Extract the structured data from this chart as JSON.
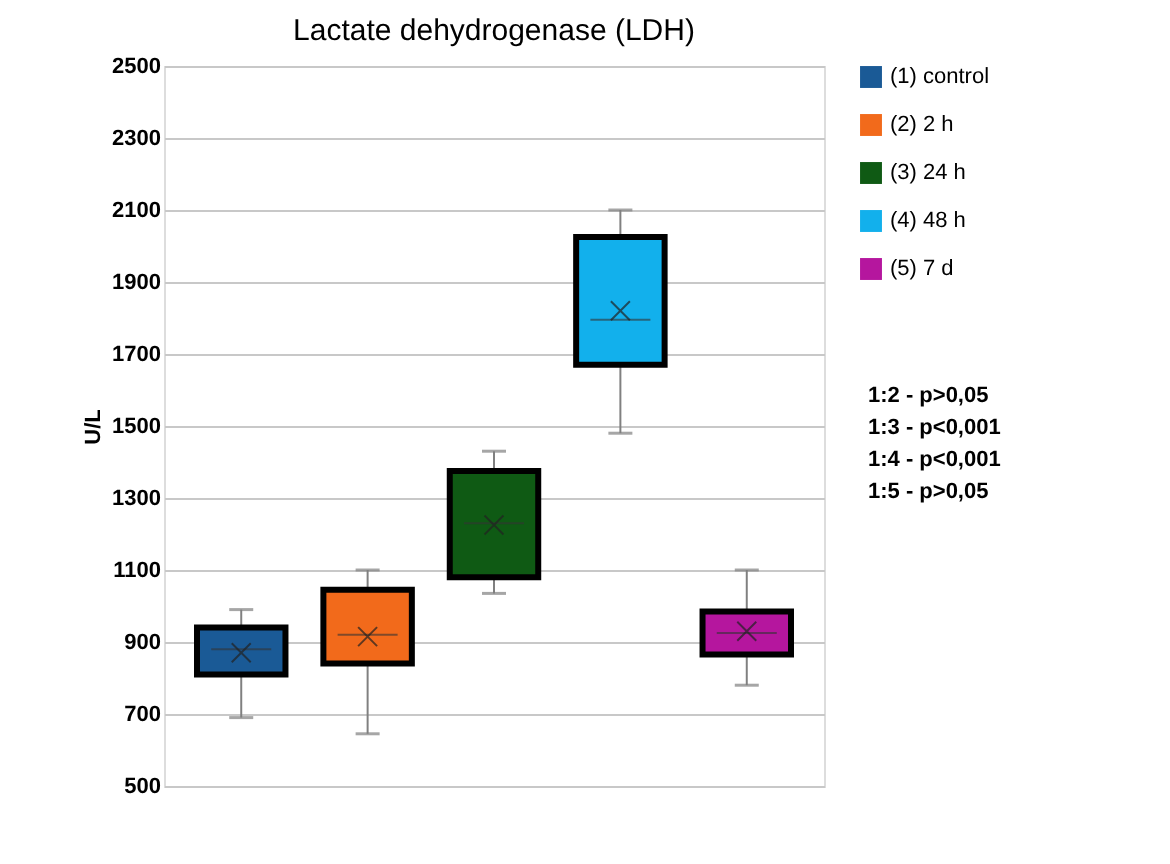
{
  "chart_data": {
    "type": "box",
    "title": "Lactate dehydrogenase (LDH)",
    "ylabel": "U/L",
    "categories": [
      null
    ],
    "series": [
      {
        "name": "(1) control",
        "color": "#1a5a96",
        "boxes": [
          {
            "low": 690,
            "q1": 810,
            "median": 880,
            "q3": 940,
            "high": 990,
            "mean": 870
          }
        ]
      },
      {
        "name": "(2) 2 h",
        "color": "#f26a1b",
        "boxes": [
          {
            "low": 645,
            "q1": 840,
            "median": 920,
            "q3": 1045,
            "high": 1100,
            "mean": 915
          }
        ]
      },
      {
        "name": "(3) 24 h",
        "color": "#0f5a14",
        "boxes": [
          {
            "low": 1035,
            "q1": 1080,
            "median": 1230,
            "q3": 1375,
            "high": 1430,
            "mean": 1225
          }
        ]
      },
      {
        "name": "(4) 48 h",
        "color": "#12b0ec",
        "boxes": [
          {
            "low": 1480,
            "q1": 1670,
            "median": 1795,
            "q3": 2025,
            "high": 2100,
            "mean": 1820
          }
        ]
      },
      {
        "name": "(5) 7 d",
        "color": "#b5169e",
        "boxes": [
          {
            "low": 780,
            "q1": 865,
            "median": 925,
            "q3": 985,
            "high": 1100,
            "mean": 930
          }
        ]
      }
    ],
    "ylim": [
      500,
      2500
    ],
    "yticks": [
      500,
      700,
      900,
      1100,
      1300,
      1500,
      1700,
      1900,
      2100,
      2300,
      2500
    ],
    "grid": "y",
    "legend": "top right",
    "tick_labels": "y",
    "annotations": [
      "1:2 - p>0,05",
      "1:3 - p<0,001",
      "1:4 - p<0,001",
      "1:5 - p>0,05"
    ]
  }
}
